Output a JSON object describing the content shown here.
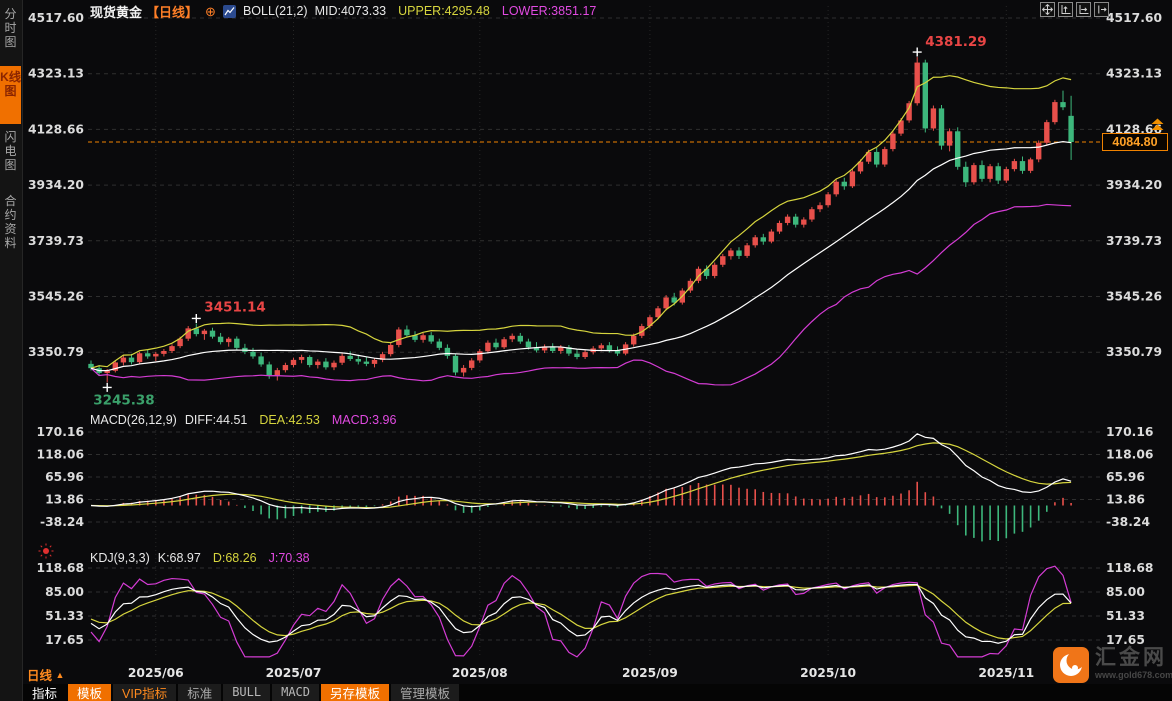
{
  "header": {
    "symbol": "现货黄金",
    "period_tag": "【日线】",
    "boll_title": "BOLL(21,2)",
    "boll_mid": "MID:4073.33",
    "boll_upper": "UPPER:4295.48",
    "boll_lower": "LOWER:3851.17"
  },
  "sidebar": {
    "items": [
      {
        "label": "分时图",
        "active": false
      },
      {
        "label": "K线图",
        "active": true
      },
      {
        "label": "闪电图",
        "active": false
      },
      {
        "label": "合约资料",
        "active": false
      }
    ]
  },
  "window_buttons": [
    {
      "icon": "pan-icon"
    },
    {
      "icon": "y-axis-scale-icon"
    },
    {
      "icon": "x-axis-scale-icon"
    },
    {
      "icon": "jump-to-latest-icon"
    }
  ],
  "macd_header": {
    "title": "MACD(26,12,9)",
    "diff": "DIFF:44.51",
    "dea": "DEA:42.53",
    "macd": "MACD:3.96"
  },
  "kdj_header": {
    "title": "KDJ(9,3,3)",
    "k": "K:68.97",
    "d": "D:68.26",
    "j": "J:70.38"
  },
  "last_price": "4084.80",
  "period_selector": {
    "label": "日线",
    "arrow": "▲"
  },
  "bottom_toolbar": {
    "items": [
      {
        "label": "指标",
        "style": "plain"
      },
      {
        "label": "模板",
        "style": "orange"
      },
      {
        "label": "VIP指标",
        "style": "orange-text"
      },
      {
        "label": "标准",
        "style": "dim"
      },
      {
        "label": "BULL",
        "style": "dim-mono"
      },
      {
        "label": "MACD",
        "style": "dim-mono"
      },
      {
        "label": "另存模板",
        "style": "orange"
      },
      {
        "label": "管理模板",
        "style": "dim"
      }
    ]
  },
  "watermark": {
    "name": "汇金网",
    "site": "www.gold678.com"
  },
  "colors": {
    "up": "#e8504b",
    "down": "#3db77c",
    "boll_mid": "#ffffff",
    "boll_upper": "#d6d53e",
    "boll_lower": "#d43cd4",
    "accent_orange": "#f08200",
    "orange_text": "#ffa126",
    "grid": "#2f2f2f",
    "vgrid": "#262626",
    "axis_text": "#dcdcdc",
    "annotation_red": "#e84545",
    "annotation_green": "#3aa06a",
    "dif_line": "#ffffff",
    "dea_line": "#d6d53e",
    "k_line": "#ffffff",
    "d_line": "#d6d53e",
    "j_line": "#d43cd4"
  },
  "chart_data": {
    "type": "candlestick",
    "title": "现货黄金 日线 K线图 + BOLL(21,2) / MACD(26,12,9) / KDJ(9,3,3)",
    "x_labels": [
      "2025/06",
      "2025/07",
      "2025/08",
      "2025/09",
      "2025/10",
      "2025/11"
    ],
    "month_start_indices": [
      8,
      25,
      48,
      69,
      91,
      113
    ],
    "main_axis_values": [
      4517.6,
      4323.13,
      4128.66,
      3934.2,
      3739.73,
      3545.26,
      3350.79
    ],
    "macd_axis_values": [
      170.16,
      118.06,
      65.96,
      13.86,
      -38.24
    ],
    "kdj_axis_values": [
      118.68,
      85.0,
      51.33,
      17.65
    ],
    "last_price": 4084.8,
    "high_annotation": {
      "index": 102,
      "text": "4381.29"
    },
    "swing_high_annotation": {
      "index": 13,
      "text": "3451.14"
    },
    "swing_low_annotation": {
      "index": 2,
      "text": "3245.38"
    },
    "indicators": {
      "boll_period": 21,
      "boll_mult": 2,
      "macd": [
        26,
        12,
        9
      ],
      "kdj": [
        9,
        3,
        3
      ]
    },
    "candles": [
      [
        3310,
        3322,
        3287,
        3295
      ],
      [
        3295,
        3305,
        3268,
        3278
      ],
      [
        3278,
        3292,
        3245.38,
        3286
      ],
      [
        3286,
        3320,
        3280,
        3315
      ],
      [
        3315,
        3340,
        3305,
        3332
      ],
      [
        3332,
        3345,
        3308,
        3316
      ],
      [
        3316,
        3352,
        3310,
        3347
      ],
      [
        3347,
        3360,
        3328,
        3336
      ],
      [
        3336,
        3352,
        3320,
        3345
      ],
      [
        3345,
        3362,
        3336,
        3355
      ],
      [
        3355,
        3378,
        3348,
        3372
      ],
      [
        3372,
        3405,
        3365,
        3398
      ],
      [
        3398,
        3442,
        3390,
        3434
      ],
      [
        3434,
        3451.14,
        3406,
        3414
      ],
      [
        3414,
        3432,
        3394,
        3426
      ],
      [
        3426,
        3436,
        3398,
        3405
      ],
      [
        3405,
        3418,
        3378,
        3386
      ],
      [
        3386,
        3404,
        3370,
        3398
      ],
      [
        3398,
        3406,
        3358,
        3366
      ],
      [
        3366,
        3380,
        3344,
        3352
      ],
      [
        3352,
        3366,
        3328,
        3336
      ],
      [
        3336,
        3350,
        3300,
        3308
      ],
      [
        3308,
        3318,
        3258,
        3270
      ],
      [
        3270,
        3296,
        3252,
        3288
      ],
      [
        3288,
        3314,
        3280,
        3306
      ],
      [
        3306,
        3332,
        3298,
        3324
      ],
      [
        3324,
        3342,
        3312,
        3334
      ],
      [
        3334,
        3340,
        3298,
        3306
      ],
      [
        3306,
        3326,
        3294,
        3318
      ],
      [
        3318,
        3330,
        3290,
        3298
      ],
      [
        3298,
        3322,
        3288,
        3314
      ],
      [
        3314,
        3346,
        3306,
        3338
      ],
      [
        3338,
        3354,
        3320,
        3327
      ],
      [
        3327,
        3342,
        3308,
        3318
      ],
      [
        3318,
        3334,
        3302,
        3310
      ],
      [
        3310,
        3330,
        3298,
        3324
      ],
      [
        3324,
        3352,
        3316,
        3344
      ],
      [
        3344,
        3384,
        3336,
        3376
      ],
      [
        3376,
        3438,
        3368,
        3430
      ],
      [
        3430,
        3444,
        3402,
        3410
      ],
      [
        3410,
        3424,
        3386,
        3394
      ],
      [
        3394,
        3418,
        3384,
        3410
      ],
      [
        3410,
        3421,
        3380,
        3388
      ],
      [
        3388,
        3398,
        3358,
        3366
      ],
      [
        3366,
        3378,
        3328,
        3338
      ],
      [
        3338,
        3346,
        3270,
        3280
      ],
      [
        3280,
        3306,
        3266,
        3296
      ],
      [
        3296,
        3330,
        3288,
        3322
      ],
      [
        3322,
        3362,
        3314,
        3354
      ],
      [
        3354,
        3392,
        3346,
        3384
      ],
      [
        3384,
        3398,
        3360,
        3368
      ],
      [
        3368,
        3404,
        3362,
        3396
      ],
      [
        3396,
        3416,
        3386,
        3408
      ],
      [
        3408,
        3418,
        3380,
        3388
      ],
      [
        3388,
        3398,
        3360,
        3368
      ],
      [
        3368,
        3386,
        3350,
        3357
      ],
      [
        3357,
        3378,
        3348,
        3371
      ],
      [
        3371,
        3382,
        3348,
        3355
      ],
      [
        3355,
        3376,
        3345,
        3368
      ],
      [
        3368,
        3376,
        3338,
        3346
      ],
      [
        3346,
        3360,
        3326,
        3334
      ],
      [
        3334,
        3358,
        3327,
        3351
      ],
      [
        3351,
        3372,
        3343,
        3364
      ],
      [
        3364,
        3382,
        3354,
        3375
      ],
      [
        3375,
        3386,
        3350,
        3358
      ],
      [
        3358,
        3371,
        3338,
        3346
      ],
      [
        3346,
        3386,
        3340,
        3378
      ],
      [
        3378,
        3416,
        3370,
        3408
      ],
      [
        3408,
        3450,
        3400,
        3442
      ],
      [
        3442,
        3480,
        3434,
        3473
      ],
      [
        3473,
        3512,
        3466,
        3504
      ],
      [
        3504,
        3550,
        3496,
        3542
      ],
      [
        3542,
        3558,
        3514,
        3524
      ],
      [
        3524,
        3574,
        3517,
        3566
      ],
      [
        3566,
        3608,
        3558,
        3600
      ],
      [
        3600,
        3650,
        3592,
        3642
      ],
      [
        3642,
        3654,
        3606,
        3617
      ],
      [
        3617,
        3664,
        3609,
        3656
      ],
      [
        3656,
        3694,
        3648,
        3686
      ],
      [
        3686,
        3714,
        3674,
        3706
      ],
      [
        3706,
        3717,
        3676,
        3687
      ],
      [
        3687,
        3732,
        3680,
        3724
      ],
      [
        3724,
        3760,
        3716,
        3752
      ],
      [
        3752,
        3764,
        3726,
        3737
      ],
      [
        3737,
        3780,
        3731,
        3772
      ],
      [
        3772,
        3810,
        3764,
        3802
      ],
      [
        3802,
        3832,
        3794,
        3824
      ],
      [
        3824,
        3834,
        3786,
        3796
      ],
      [
        3796,
        3822,
        3786,
        3814
      ],
      [
        3814,
        3858,
        3806,
        3850
      ],
      [
        3850,
        3874,
        3840,
        3864
      ],
      [
        3864,
        3910,
        3856,
        3902
      ],
      [
        3902,
        3954,
        3894,
        3946
      ],
      [
        3946,
        3960,
        3918,
        3930
      ],
      [
        3930,
        3990,
        3924,
        3982
      ],
      [
        3982,
        4024,
        3974,
        4016
      ],
      [
        4016,
        4058,
        4008,
        4050
      ],
      [
        4050,
        4064,
        3996,
        4006
      ],
      [
        4006,
        4068,
        3998,
        4060
      ],
      [
        4060,
        4122,
        4052,
        4114
      ],
      [
        4114,
        4168,
        4106,
        4160
      ],
      [
        4160,
        4228,
        4152,
        4220
      ],
      [
        4220,
        4381.29,
        4212,
        4362
      ],
      [
        4362,
        4372,
        4118,
        4132
      ],
      [
        4132,
        4212,
        4124,
        4202
      ],
      [
        4202,
        4214,
        4058,
        4072
      ],
      [
        4072,
        4132,
        4052,
        4122
      ],
      [
        4122,
        4136,
        3988,
        3998
      ],
      [
        3998,
        4016,
        3928,
        3944
      ],
      [
        3944,
        4012,
        3936,
        4004
      ],
      [
        4004,
        4020,
        3946,
        3956
      ],
      [
        3956,
        4008,
        3944,
        4000
      ],
      [
        4000,
        4012,
        3938,
        3950
      ],
      [
        3950,
        3998,
        3942,
        3990
      ],
      [
        3990,
        4026,
        3982,
        4018
      ],
      [
        4018,
        4034,
        3974,
        3984
      ],
      [
        3984,
        4030,
        3976,
        4024
      ],
      [
        4024,
        4090,
        4014,
        4082
      ],
      [
        4082,
        4162,
        4074,
        4154
      ],
      [
        4154,
        4232,
        4146,
        4224
      ],
      [
        4224,
        4264,
        4196,
        4206
      ],
      [
        4176,
        4246,
        4022,
        4084.8
      ]
    ]
  }
}
